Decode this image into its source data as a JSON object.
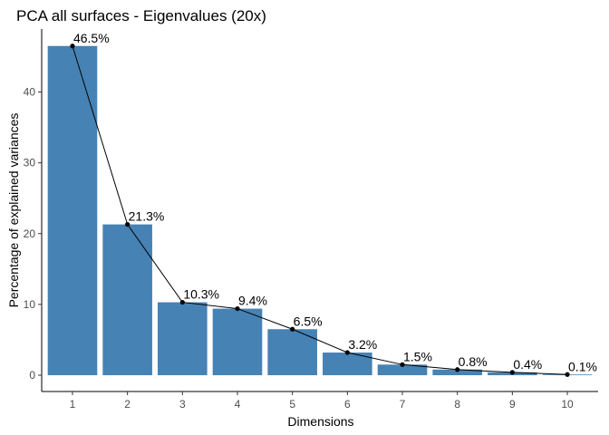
{
  "chart_data": {
    "type": "bar",
    "title": "PCA all surfaces - Eigenvalues (20x)",
    "xlabel": "Dimensions",
    "ylabel": "Percentage of explained variances",
    "categories": [
      "1",
      "2",
      "3",
      "4",
      "5",
      "6",
      "7",
      "8",
      "9",
      "10"
    ],
    "values": [
      46.5,
      21.3,
      10.3,
      9.4,
      6.5,
      3.2,
      1.5,
      0.8,
      0.4,
      0.1
    ],
    "data_labels": [
      "46.5%",
      "21.3%",
      "10.3%",
      "9.4%",
      "6.5%",
      "3.2%",
      "1.5%",
      "0.8%",
      "0.4%",
      "0.1%"
    ],
    "line_overlay": true,
    "ylim": [
      -2.3,
      48.9
    ],
    "yticks": [
      0,
      10,
      20,
      30,
      40
    ],
    "grid": false,
    "legend": "none",
    "colors": {
      "bar": "#4682B4",
      "line": "#000000",
      "point": "#000000",
      "axis": "#000000"
    }
  }
}
